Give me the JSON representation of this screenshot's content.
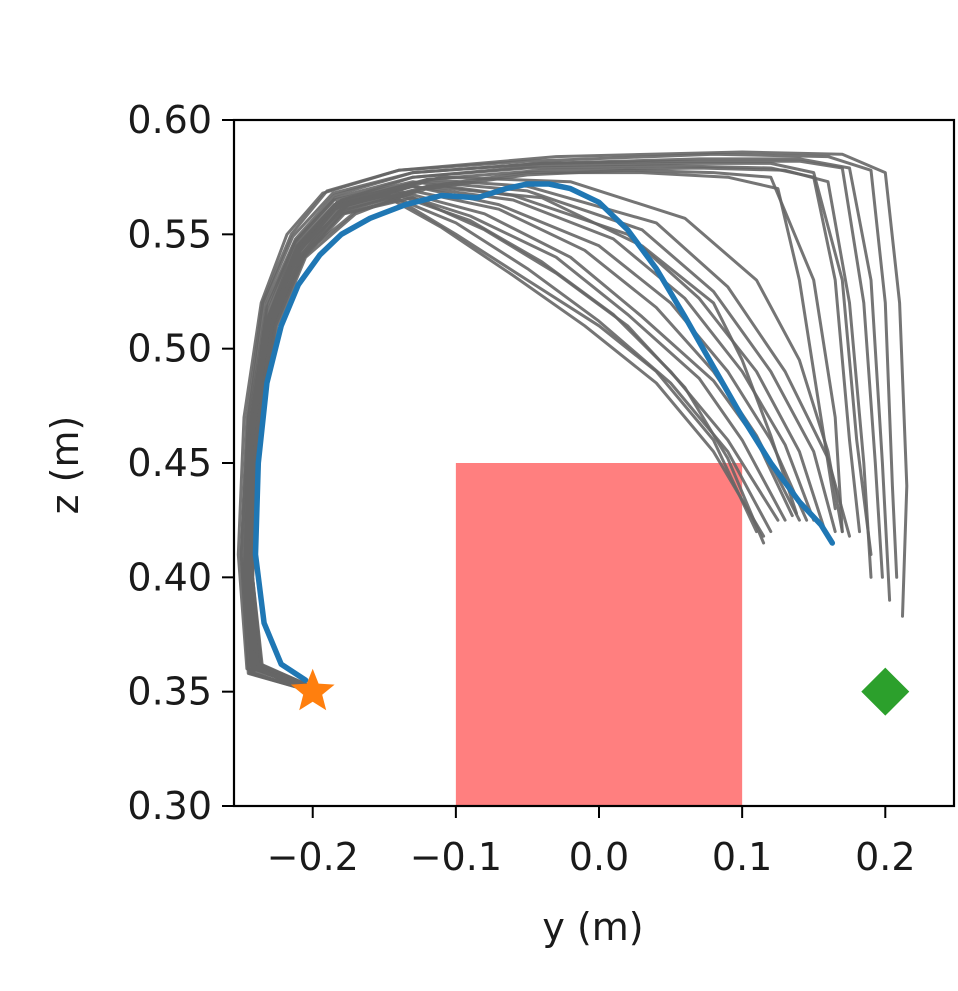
{
  "chart_data": {
    "type": "line",
    "title": "",
    "xlabel": "y (m)",
    "ylabel": "z (m)",
    "xlim": [
      -0.255,
      0.248
    ],
    "ylim": [
      0.3,
      0.6
    ],
    "x_ticks": [
      -0.2,
      -0.1,
      0.0,
      0.1,
      0.2
    ],
    "x_tick_labels": [
      "−0.2",
      "−0.1",
      "0.0",
      "0.1",
      "0.2"
    ],
    "y_ticks": [
      0.3,
      0.35,
      0.4,
      0.45,
      0.5,
      0.55,
      0.6
    ],
    "y_tick_labels": [
      "0.30",
      "0.35",
      "0.40",
      "0.45",
      "0.50",
      "0.55",
      "0.60"
    ],
    "grid": false,
    "legend": "none",
    "obstacle": {
      "x_range": [
        -0.1,
        0.1
      ],
      "y_range": [
        0.3,
        0.45
      ],
      "color": "#ff7f7f"
    },
    "start": {
      "x": -0.2,
      "y": 0.35,
      "marker": "star",
      "color": "#ff7f0e"
    },
    "goal": {
      "x": 0.2,
      "y": 0.35,
      "marker": "diamond",
      "color": "#2ca02c"
    },
    "gray_trajectories": {
      "color": "#666666",
      "paths": [
        {
          "x": [
            -0.2,
            -0.235,
            -0.242,
            -0.238,
            -0.225,
            -0.205,
            -0.17,
            -0.12,
            -0.05,
            0.03,
            0.09,
            0.125,
            0.14,
            0.155,
            0.165
          ],
          "y": [
            0.352,
            0.36,
            0.4,
            0.46,
            0.51,
            0.54,
            0.559,
            0.571,
            0.577,
            0.577,
            0.575,
            0.57,
            0.53,
            0.47,
            0.43
          ]
        },
        {
          "x": [
            -0.2,
            -0.24,
            -0.246,
            -0.242,
            -0.23,
            -0.21,
            -0.18,
            -0.13,
            -0.05,
            0.05,
            0.12,
            0.15,
            0.165,
            0.175,
            0.182
          ],
          "y": [
            0.35,
            0.36,
            0.41,
            0.47,
            0.515,
            0.545,
            0.565,
            0.575,
            0.579,
            0.58,
            0.579,
            0.575,
            0.53,
            0.46,
            0.42
          ]
        },
        {
          "x": [
            -0.2,
            -0.243,
            -0.248,
            -0.244,
            -0.232,
            -0.212,
            -0.185,
            -0.13,
            -0.04,
            0.06,
            0.14,
            0.17,
            0.185,
            0.193,
            0.198
          ],
          "y": [
            0.35,
            0.358,
            0.41,
            0.47,
            0.52,
            0.548,
            0.567,
            0.577,
            0.581,
            0.582,
            0.582,
            0.579,
            0.52,
            0.45,
            0.4
          ]
        },
        {
          "x": [
            -0.2,
            -0.245,
            -0.25,
            -0.246,
            -0.235,
            -0.215,
            -0.19,
            -0.14,
            -0.05,
            0.08,
            0.16,
            0.19,
            0.2,
            0.205,
            0.208
          ],
          "y": [
            0.35,
            0.358,
            0.41,
            0.47,
            0.52,
            0.55,
            0.569,
            0.578,
            0.582,
            0.585,
            0.584,
            0.578,
            0.52,
            0.44,
            0.4
          ]
        },
        {
          "x": [
            -0.2,
            -0.246,
            -0.252,
            -0.248,
            -0.236,
            -0.218,
            -0.193,
            -0.14,
            -0.03,
            0.1,
            0.17,
            0.2,
            0.21,
            0.215,
            0.212
          ],
          "y": [
            0.352,
            0.36,
            0.41,
            0.47,
            0.52,
            0.55,
            0.568,
            0.578,
            0.584,
            0.586,
            0.585,
            0.577,
            0.52,
            0.44,
            0.383
          ]
        },
        {
          "x": [
            -0.2,
            -0.24,
            -0.245,
            -0.24,
            -0.228,
            -0.208,
            -0.175,
            -0.12,
            -0.04,
            0.07,
            0.13,
            0.16,
            0.175,
            0.185,
            0.19
          ],
          "y": [
            0.352,
            0.362,
            0.41,
            0.47,
            0.515,
            0.544,
            0.563,
            0.574,
            0.578,
            0.579,
            0.578,
            0.573,
            0.52,
            0.45,
            0.4
          ]
        },
        {
          "x": [
            -0.2,
            -0.242,
            -0.247,
            -0.243,
            -0.232,
            -0.212,
            -0.184,
            -0.13,
            -0.04,
            0.06,
            0.12,
            0.15,
            0.17,
            0.18,
            0.19
          ],
          "y": [
            0.352,
            0.36,
            0.41,
            0.47,
            0.518,
            0.547,
            0.566,
            0.575,
            0.58,
            0.581,
            0.581,
            0.577,
            0.53,
            0.46,
            0.41
          ]
        },
        {
          "x": [
            -0.2,
            -0.238,
            -0.244,
            -0.24,
            -0.227,
            -0.205,
            -0.17,
            -0.12,
            -0.05,
            0.02,
            0.08,
            0.12,
            0.15,
            0.165,
            0.17
          ],
          "y": [
            0.35,
            0.36,
            0.4,
            0.46,
            0.512,
            0.542,
            0.56,
            0.57,
            0.576,
            0.578,
            0.577,
            0.575,
            0.53,
            0.47,
            0.42
          ]
        },
        {
          "x": [
            -0.2,
            -0.244,
            -0.25,
            -0.245,
            -0.234,
            -0.214,
            -0.186,
            -0.13,
            -0.04,
            0.07,
            0.14,
            0.175,
            0.19,
            0.198,
            0.203
          ],
          "y": [
            0.35,
            0.358,
            0.41,
            0.47,
            0.52,
            0.549,
            0.568,
            0.577,
            0.581,
            0.583,
            0.583,
            0.579,
            0.53,
            0.45,
            0.39
          ]
        },
        {
          "x": [
            -0.2,
            -0.236,
            -0.242,
            -0.24,
            -0.228,
            -0.208,
            -0.18,
            -0.14,
            -0.1,
            -0.05,
            0.0,
            0.04,
            0.08,
            0.11
          ],
          "y": [
            0.352,
            0.36,
            0.4,
            0.46,
            0.51,
            0.54,
            0.559,
            0.565,
            0.55,
            0.53,
            0.51,
            0.49,
            0.46,
            0.42
          ]
        },
        {
          "x": [
            -0.2,
            -0.238,
            -0.244,
            -0.241,
            -0.229,
            -0.21,
            -0.185,
            -0.15,
            -0.11,
            -0.06,
            -0.01,
            0.04,
            0.08,
            0.115
          ],
          "y": [
            0.35,
            0.36,
            0.4,
            0.46,
            0.512,
            0.542,
            0.561,
            0.567,
            0.553,
            0.532,
            0.51,
            0.485,
            0.455,
            0.418
          ]
        },
        {
          "x": [
            -0.2,
            -0.24,
            -0.246,
            -0.243,
            -0.23,
            -0.212,
            -0.186,
            -0.15,
            -0.1,
            -0.05,
            0.0,
            0.05,
            0.09,
            0.12
          ],
          "y": [
            0.35,
            0.36,
            0.4,
            0.46,
            0.513,
            0.543,
            0.562,
            0.568,
            0.555,
            0.535,
            0.512,
            0.485,
            0.455,
            0.42
          ]
        },
        {
          "x": [
            -0.2,
            -0.237,
            -0.243,
            -0.24,
            -0.227,
            -0.208,
            -0.182,
            -0.14,
            -0.09,
            -0.04,
            0.01,
            0.05,
            0.09,
            0.125
          ],
          "y": [
            0.352,
            0.362,
            0.4,
            0.46,
            0.511,
            0.541,
            0.56,
            0.567,
            0.556,
            0.538,
            0.515,
            0.49,
            0.46,
            0.425
          ]
        },
        {
          "x": [
            -0.2,
            -0.239,
            -0.245,
            -0.242,
            -0.229,
            -0.21,
            -0.183,
            -0.14,
            -0.09,
            -0.03,
            0.02,
            0.07,
            0.1,
            0.13
          ],
          "y": [
            0.35,
            0.36,
            0.4,
            0.46,
            0.512,
            0.542,
            0.562,
            0.568,
            0.558,
            0.54,
            0.515,
            0.487,
            0.46,
            0.425
          ]
        },
        {
          "x": [
            -0.2,
            -0.241,
            -0.247,
            -0.244,
            -0.231,
            -0.212,
            -0.185,
            -0.14,
            -0.08,
            -0.02,
            0.03,
            0.08,
            0.11,
            0.135
          ],
          "y": [
            0.35,
            0.358,
            0.4,
            0.46,
            0.514,
            0.545,
            0.563,
            0.569,
            0.559,
            0.54,
            0.514,
            0.486,
            0.46,
            0.427
          ]
        },
        {
          "x": [
            -0.2,
            -0.237,
            -0.243,
            -0.24,
            -0.227,
            -0.207,
            -0.178,
            -0.13,
            -0.07,
            -0.01,
            0.04,
            0.08,
            0.11,
            0.14
          ],
          "y": [
            0.352,
            0.36,
            0.4,
            0.46,
            0.51,
            0.54,
            0.56,
            0.569,
            0.561,
            0.543,
            0.518,
            0.49,
            0.462,
            0.425
          ]
        },
        {
          "x": [
            -0.2,
            -0.24,
            -0.246,
            -0.243,
            -0.23,
            -0.211,
            -0.183,
            -0.13,
            -0.07,
            0.0,
            0.05,
            0.09,
            0.12,
            0.145
          ],
          "y": [
            0.35,
            0.36,
            0.4,
            0.46,
            0.513,
            0.543,
            0.563,
            0.571,
            0.563,
            0.545,
            0.52,
            0.49,
            0.46,
            0.425
          ]
        },
        {
          "x": [
            -0.2,
            -0.238,
            -0.244,
            -0.241,
            -0.228,
            -0.209,
            -0.18,
            -0.13,
            -0.06,
            0.01,
            0.06,
            0.1,
            0.13,
            0.15
          ],
          "y": [
            0.352,
            0.362,
            0.4,
            0.46,
            0.511,
            0.542,
            0.562,
            0.571,
            0.565,
            0.548,
            0.522,
            0.49,
            0.458,
            0.425
          ]
        },
        {
          "x": [
            -0.2,
            -0.242,
            -0.248,
            -0.245,
            -0.232,
            -0.213,
            -0.185,
            -0.13,
            -0.06,
            0.02,
            0.07,
            0.11,
            0.14,
            0.158
          ],
          "y": [
            0.35,
            0.358,
            0.4,
            0.46,
            0.515,
            0.546,
            0.565,
            0.573,
            0.567,
            0.55,
            0.522,
            0.49,
            0.455,
            0.42
          ]
        },
        {
          "x": [
            -0.2,
            -0.239,
            -0.245,
            -0.242,
            -0.229,
            -0.21,
            -0.181,
            -0.12,
            -0.05,
            0.03,
            0.08,
            0.12,
            0.15,
            0.165
          ],
          "y": [
            0.35,
            0.36,
            0.4,
            0.46,
            0.512,
            0.543,
            0.563,
            0.573,
            0.569,
            0.552,
            0.525,
            0.49,
            0.455,
            0.42
          ]
        },
        {
          "x": [
            -0.2,
            -0.24,
            -0.246,
            -0.242,
            -0.23,
            -0.211,
            -0.183,
            -0.12,
            -0.05,
            0.04,
            0.09,
            0.13,
            0.16,
            0.175
          ],
          "y": [
            0.352,
            0.36,
            0.4,
            0.46,
            0.513,
            0.544,
            0.564,
            0.574,
            0.571,
            0.555,
            0.527,
            0.49,
            0.452,
            0.418
          ]
        },
        {
          "x": [
            -0.2,
            -0.236,
            -0.242,
            -0.238,
            -0.226,
            -0.206,
            -0.178,
            -0.13,
            -0.08,
            -0.03,
            0.02,
            0.06,
            0.09,
            0.115
          ],
          "y": [
            0.352,
            0.362,
            0.4,
            0.46,
            0.51,
            0.54,
            0.559,
            0.566,
            0.552,
            0.533,
            0.51,
            0.483,
            0.452,
            0.415
          ]
        },
        {
          "x": [
            -0.2,
            -0.238,
            -0.244,
            -0.24,
            -0.228,
            -0.208,
            -0.18,
            -0.12,
            -0.04,
            0.03,
            0.08,
            0.1,
            0.12,
            0.138
          ],
          "y": [
            0.35,
            0.36,
            0.4,
            0.46,
            0.511,
            0.541,
            0.561,
            0.571,
            0.566,
            0.545,
            0.52,
            0.495,
            0.462,
            0.428
          ]
        },
        {
          "x": [
            -0.2,
            -0.241,
            -0.247,
            -0.243,
            -0.231,
            -0.211,
            -0.183,
            -0.11,
            -0.02,
            0.06,
            0.11,
            0.14,
            0.16,
            0.17
          ],
          "y": [
            0.35,
            0.358,
            0.4,
            0.46,
            0.514,
            0.545,
            0.564,
            0.575,
            0.573,
            0.557,
            0.53,
            0.495,
            0.455,
            0.42
          ]
        }
      ]
    },
    "highlight_trajectory": {
      "color": "#1f77b4",
      "x": [
        -0.205,
        -0.222,
        -0.234,
        -0.24,
        -0.238,
        -0.232,
        -0.222,
        -0.21,
        -0.195,
        -0.18,
        -0.16,
        -0.135,
        -0.11,
        -0.085,
        -0.065,
        -0.05,
        -0.035,
        -0.02,
        0.0,
        0.02,
        0.04,
        0.06,
        0.08,
        0.1,
        0.12,
        0.14,
        0.155,
        0.163
      ],
      "y": [
        0.355,
        0.362,
        0.38,
        0.41,
        0.45,
        0.485,
        0.51,
        0.528,
        0.541,
        0.55,
        0.557,
        0.563,
        0.567,
        0.566,
        0.57,
        0.572,
        0.572,
        0.57,
        0.564,
        0.552,
        0.535,
        0.514,
        0.492,
        0.47,
        0.45,
        0.433,
        0.423,
        0.415
      ]
    }
  }
}
